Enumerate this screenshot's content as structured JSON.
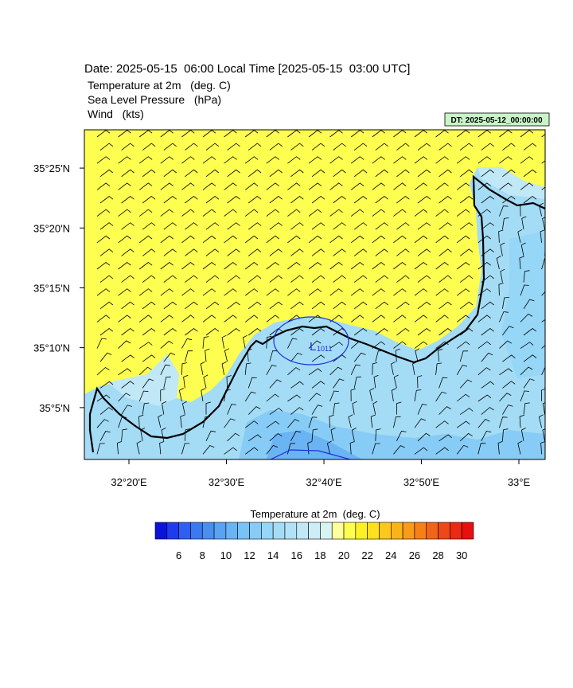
{
  "header": {
    "date": "Date: 2025-05-15  06:00 Local Time [2025-05-15  03:00 UTC]",
    "fields": [
      "Temperature at 2m   (deg. C)",
      "Sea Level Pressure   (hPa)",
      "Wind   (kts)"
    ],
    "dt": "DT: 2025-05-12_00:00:00"
  },
  "map": {
    "xlim": [
      32.2571,
      33.0449
    ],
    "ylim": [
      35.0111,
      35.47
    ],
    "xticks": [
      {
        "value": 32.3333,
        "label": "32°20'E"
      },
      {
        "value": 32.5,
        "label": "32°30'E"
      },
      {
        "value": 32.6667,
        "label": "32°40'E"
      },
      {
        "value": 32.8333,
        "label": "32°50'E"
      },
      {
        "value": 33,
        "label": "33°E"
      }
    ],
    "yticks": [
      {
        "value": 35.0833,
        "label": "35°5'N"
      },
      {
        "value": 35.1667,
        "label": "35°10'N"
      },
      {
        "value": 35.25,
        "label": "35°15'N"
      },
      {
        "value": 35.3333,
        "label": "35°20'N"
      },
      {
        "value": 35.4167,
        "label": "35°25'N"
      }
    ],
    "low": {
      "symbol": "L",
      "value": 1011
    }
  },
  "colorbar": {
    "title": "Temperature at 2m  (deg. C)",
    "range": [
      4,
      31
    ],
    "labels": [
      6,
      8,
      10,
      12,
      14,
      16,
      18,
      20,
      22,
      24,
      26,
      28,
      30
    ],
    "colors": [
      "#0a14d8",
      "#1e3cee",
      "#2e5ef2",
      "#3c78f0",
      "#4a8ef0",
      "#5aa2f2",
      "#6ab4f4",
      "#78c2f6",
      "#86ccf6",
      "#96d6f6",
      "#a4dcf6",
      "#b2e2f6",
      "#c0e8f6",
      "#cceef4",
      "#d8f4f2",
      "#fefe9c",
      "#fefe50",
      "#fef028",
      "#fee020",
      "#fcc81c",
      "#fab418",
      "#f89c18",
      "#f68018",
      "#f26418",
      "#ee4818",
      "#ea2a14",
      "#e61010"
    ]
  }
}
